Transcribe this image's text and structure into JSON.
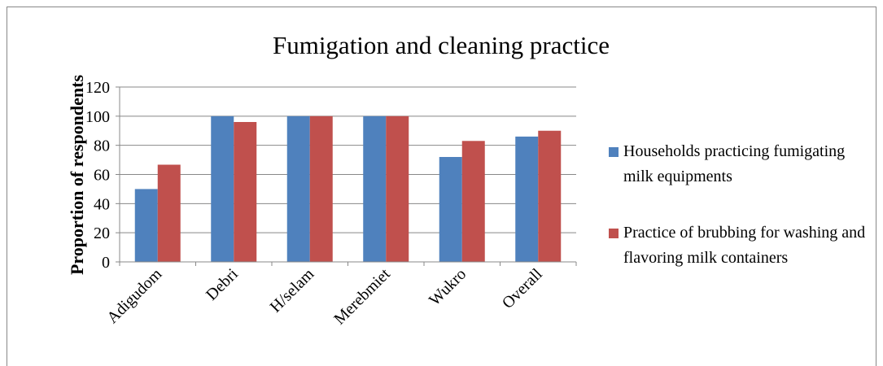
{
  "chart_data": {
    "type": "bar",
    "title": "Fumigation and cleaning practice",
    "y_label": "Proportion of respondents",
    "categories": [
      "Adigudom",
      "Debri",
      "H/selam",
      "Merebmiet",
      "Wukro",
      "Overall"
    ],
    "series": [
      {
        "name": "Households practicing fumigating milk equipments",
        "color": "#4f81bd",
        "values": [
          50,
          100,
          100,
          100,
          72,
          86
        ]
      },
      {
        "name": "Practice of brubbing for washing and flavoring milk containers",
        "color": "#c0504d",
        "values": [
          66.7,
          96,
          100,
          100,
          83,
          90
        ]
      }
    ],
    "ylim": [
      0,
      120
    ],
    "yticks": [
      0,
      20,
      40,
      60,
      80,
      100,
      120
    ],
    "grid": true,
    "legend": "right"
  }
}
